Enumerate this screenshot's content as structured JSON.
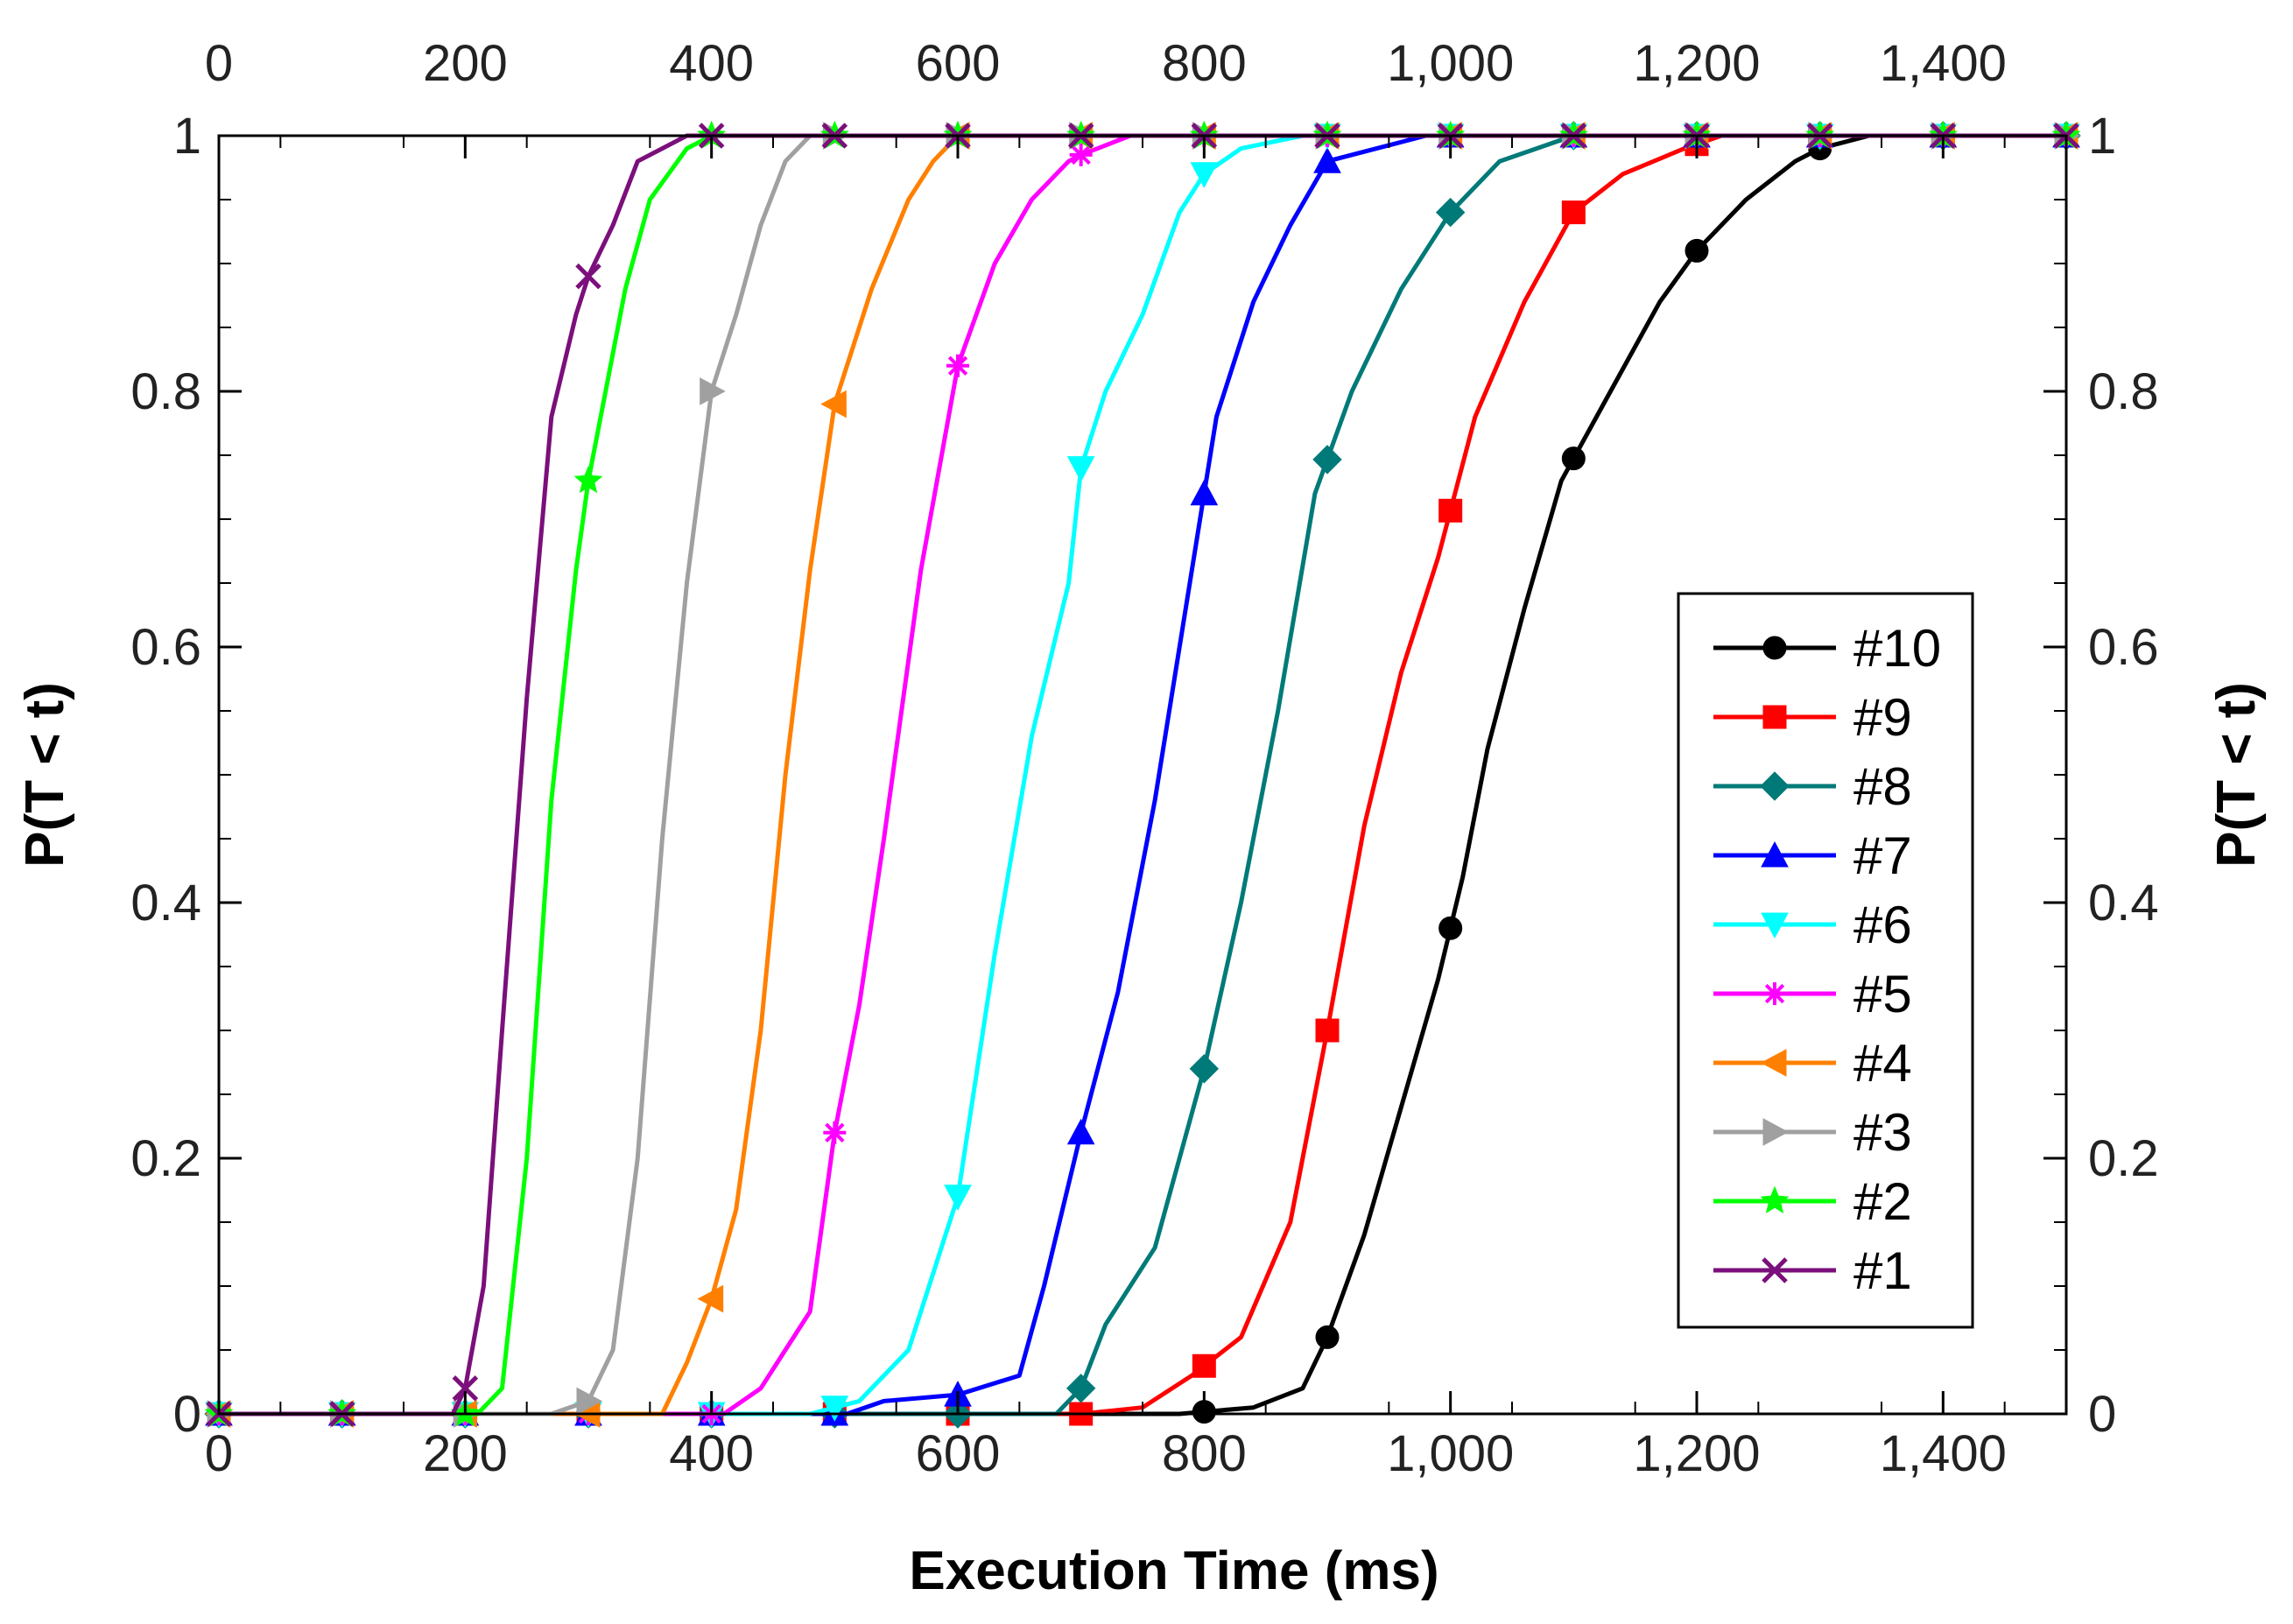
{
  "chart_data": {
    "type": "line",
    "title": "",
    "xlabel": "Execution Time (ms)",
    "ylabel": "P(T < t)",
    "ylabel_right": "P(T < t)",
    "xlim": [
      0,
      1500
    ],
    "ylim": [
      0,
      1
    ],
    "x_ticks": [
      0,
      200,
      400,
      600,
      800,
      1000,
      1200,
      1400
    ],
    "x_tick_labels": [
      "0",
      "200",
      "400",
      "600",
      "800",
      "1,000",
      "1,200",
      "1,400"
    ],
    "y_ticks": [
      0,
      0.2,
      0.4,
      0.6,
      0.8,
      1
    ],
    "y_tick_labels": [
      "0",
      "0.2",
      "0.4",
      "0.6",
      "0.8",
      "1"
    ],
    "grid": false,
    "legend_position": "right",
    "series": [
      {
        "name": "#10",
        "color": "#000000",
        "marker": "circle",
        "x": [
          0,
          780,
          840,
          880,
          900,
          930,
          960,
          990,
          1010,
          1030,
          1060,
          1090,
          1130,
          1170,
          1200,
          1240,
          1280,
          1300,
          1340,
          1500
        ],
        "y": [
          0,
          0,
          0.005,
          0.02,
          0.06,
          0.14,
          0.24,
          0.34,
          0.42,
          0.52,
          0.63,
          0.73,
          0.8,
          0.87,
          0.91,
          0.95,
          0.98,
          0.99,
          1,
          1
        ]
      },
      {
        "name": "#9",
        "color": "#ff0000",
        "marker": "square",
        "x": [
          0,
          700,
          750,
          790,
          830,
          870,
          900,
          930,
          960,
          990,
          1020,
          1060,
          1100,
          1140,
          1190,
          1220,
          1500
        ],
        "y": [
          0,
          0,
          0.005,
          0.03,
          0.06,
          0.15,
          0.3,
          0.46,
          0.58,
          0.67,
          0.78,
          0.87,
          0.94,
          0.97,
          0.99,
          1,
          1
        ]
      },
      {
        "name": "#8",
        "color": "#007a78",
        "marker": "diamond",
        "x": [
          0,
          680,
          700,
          720,
          760,
          800,
          830,
          860,
          890,
          920,
          960,
          1000,
          1040,
          1070,
          1100,
          1120,
          1500
        ],
        "y": [
          0,
          0,
          0.02,
          0.07,
          0.13,
          0.27,
          0.4,
          0.55,
          0.72,
          0.8,
          0.88,
          0.94,
          0.98,
          0.99,
          1,
          1,
          1
        ]
      },
      {
        "name": "#7",
        "color": "#0000ff",
        "marker": "triangle-up",
        "x": [
          0,
          510,
          540,
          600,
          650,
          670,
          700,
          730,
          760,
          790,
          810,
          840,
          870,
          900,
          940,
          980,
          1500
        ],
        "y": [
          0,
          0,
          0.01,
          0.015,
          0.03,
          0.1,
          0.22,
          0.33,
          0.48,
          0.66,
          0.78,
          0.87,
          0.93,
          0.98,
          0.99,
          1,
          1
        ]
      },
      {
        "name": "#6",
        "color": "#00ffff",
        "marker": "triangle-down",
        "x": [
          0,
          480,
          520,
          560,
          600,
          630,
          660,
          690,
          700,
          720,
          750,
          780,
          800,
          830,
          880,
          1500
        ],
        "y": [
          0,
          0,
          0.01,
          0.05,
          0.17,
          0.36,
          0.53,
          0.65,
          0.74,
          0.8,
          0.86,
          0.94,
          0.97,
          0.99,
          1,
          1
        ]
      },
      {
        "name": "#5",
        "color": "#ff00ff",
        "marker": "asterisk",
        "x": [
          0,
          410,
          440,
          480,
          500,
          520,
          540,
          570,
          600,
          630,
          660,
          690,
          700,
          740,
          1500
        ],
        "y": [
          0,
          0,
          0.02,
          0.08,
          0.22,
          0.32,
          0.45,
          0.66,
          0.82,
          0.9,
          0.95,
          0.98,
          0.985,
          1,
          1
        ]
      },
      {
        "name": "#4",
        "color": "#ff8000",
        "marker": "triangle-left",
        "x": [
          0,
          360,
          380,
          400,
          420,
          440,
          460,
          480,
          500,
          530,
          560,
          580,
          600,
          1500
        ],
        "y": [
          0,
          0,
          0.04,
          0.09,
          0.16,
          0.3,
          0.5,
          0.66,
          0.79,
          0.88,
          0.95,
          0.98,
          1,
          1
        ]
      },
      {
        "name": "#3",
        "color": "#a0a0a0",
        "marker": "triangle-right",
        "x": [
          0,
          270,
          300,
          320,
          340,
          360,
          380,
          400,
          420,
          440,
          460,
          480,
          1500
        ],
        "y": [
          0,
          0,
          0.01,
          0.05,
          0.2,
          0.45,
          0.65,
          0.8,
          0.86,
          0.93,
          0.98,
          1,
          1
        ]
      },
      {
        "name": "#2",
        "color": "#00ff00",
        "marker": "star",
        "x": [
          0,
          210,
          230,
          250,
          270,
          290,
          300,
          330,
          350,
          380,
          400,
          1500
        ],
        "y": [
          0,
          0,
          0.02,
          0.2,
          0.48,
          0.66,
          0.73,
          0.88,
          0.95,
          0.99,
          1,
          1
        ]
      },
      {
        "name": "#1",
        "color": "#7b0f7b",
        "marker": "x",
        "x": [
          0,
          190,
          200,
          215,
          230,
          250,
          270,
          290,
          300,
          320,
          340,
          360,
          380,
          1500
        ],
        "y": [
          0,
          0,
          0.02,
          0.1,
          0.3,
          0.56,
          0.78,
          0.86,
          0.89,
          0.93,
          0.98,
          0.99,
          1,
          1
        ]
      }
    ]
  }
}
